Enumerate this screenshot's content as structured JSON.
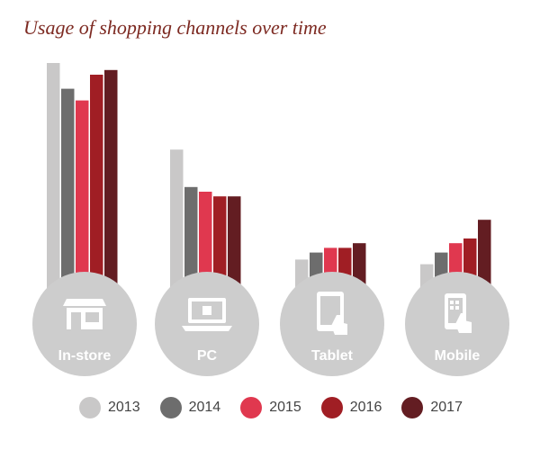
{
  "title": "Usage of shopping channels over time",
  "colors": [
    "#c9c8c8",
    "#6d6d6d",
    "#e0384f",
    "#a01e24",
    "#631d22"
  ],
  "icons": [
    "store-icon",
    "laptop-icon",
    "tablet-touch-icon",
    "mobile-touch-icon"
  ],
  "chart_data": {
    "type": "bar",
    "title": "Usage of shopping channels over time",
    "categories": [
      "In-store",
      "PC",
      "Tablet",
      "Mobile"
    ],
    "series": [
      {
        "name": "2013",
        "values": [
          100,
          63,
          16,
          14
        ]
      },
      {
        "name": "2014",
        "values": [
          89,
          47,
          19,
          19
        ]
      },
      {
        "name": "2015",
        "values": [
          84,
          45,
          21,
          23
        ]
      },
      {
        "name": "2016",
        "values": [
          95,
          43,
          21,
          25
        ]
      },
      {
        "name": "2017",
        "values": [
          97,
          43,
          23,
          33
        ]
      }
    ],
    "ylim": [
      0,
      100
    ],
    "grid": false,
    "legend": "bottom"
  }
}
